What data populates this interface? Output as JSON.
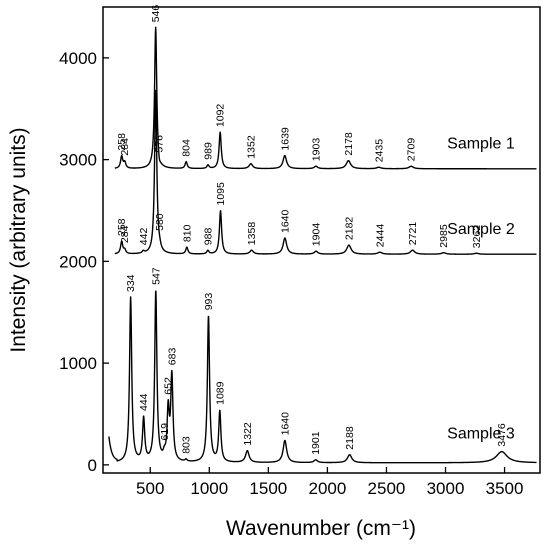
{
  "chart_data": {
    "type": "line",
    "xlabel": "Wavenumber (cm⁻¹)",
    "ylabel": "Intensity (arbitrary units)",
    "xlim": [
      100,
      3800
    ],
    "ylim": [
      -80,
      4500
    ],
    "xticks": [
      500,
      1000,
      1500,
      2000,
      2500,
      3000,
      3500
    ],
    "yticks": [
      0,
      1000,
      2000,
      3000,
      4000
    ],
    "grid": false,
    "series": [
      {
        "name": "Sample 1",
        "baseline": 2910,
        "peaks": [
          {
            "x": 258,
            "y": 3040,
            "label": "258"
          },
          {
            "x": 284,
            "y": 2990,
            "label": "284"
          },
          {
            "x": 546,
            "y": 4300,
            "label": "546"
          },
          {
            "x": 576,
            "y": 3020,
            "label": "576"
          },
          {
            "x": 804,
            "y": 2980,
            "label": "804"
          },
          {
            "x": 989,
            "y": 2950,
            "label": "989"
          },
          {
            "x": 1092,
            "y": 3270,
            "label": "1092"
          },
          {
            "x": 1352,
            "y": 2960,
            "label": "1352"
          },
          {
            "x": 1639,
            "y": 3040,
            "label": "1639"
          },
          {
            "x": 1903,
            "y": 2935,
            "label": "1903"
          },
          {
            "x": 2178,
            "y": 2990,
            "label": "2178"
          },
          {
            "x": 2435,
            "y": 2925,
            "label": "2435"
          },
          {
            "x": 2709,
            "y": 2935,
            "label": "2709"
          }
        ]
      },
      {
        "name": "Sample 2",
        "baseline": 2070,
        "peaks": [
          {
            "x": 258,
            "y": 2200,
            "label": "258"
          },
          {
            "x": 284,
            "y": 2130,
            "label": "284"
          },
          {
            "x": 442,
            "y": 2110,
            "label": "442"
          },
          {
            "x": 546,
            "y": 3680,
            "label": ""
          },
          {
            "x": 580,
            "y": 2250,
            "label": "580"
          },
          {
            "x": 810,
            "y": 2140,
            "label": "810"
          },
          {
            "x": 988,
            "y": 2110,
            "label": "988"
          },
          {
            "x": 1095,
            "y": 2500,
            "label": "1095"
          },
          {
            "x": 1358,
            "y": 2110,
            "label": "1358"
          },
          {
            "x": 1640,
            "y": 2230,
            "label": "1640"
          },
          {
            "x": 1904,
            "y": 2100,
            "label": "1904"
          },
          {
            "x": 2182,
            "y": 2160,
            "label": "2182"
          },
          {
            "x": 2444,
            "y": 2090,
            "label": "2444"
          },
          {
            "x": 2721,
            "y": 2110,
            "label": "2721"
          },
          {
            "x": 2985,
            "y": 2085,
            "label": "2985"
          },
          {
            "x": 3262,
            "y": 2080,
            "label": "3262"
          }
        ]
      },
      {
        "name": "Sample 3",
        "baseline": 20,
        "peaks": [
          {
            "x": 334,
            "y": 1650,
            "label": "334"
          },
          {
            "x": 444,
            "y": 480,
            "label": "444"
          },
          {
            "x": 547,
            "y": 1720,
            "label": "547"
          },
          {
            "x": 619,
            "y": 190,
            "label": "619"
          },
          {
            "x": 652,
            "y": 640,
            "label": "652"
          },
          {
            "x": 683,
            "y": 930,
            "label": "683"
          },
          {
            "x": 803,
            "y": 60,
            "label": "803"
          },
          {
            "x": 993,
            "y": 1470,
            "label": "993"
          },
          {
            "x": 1089,
            "y": 540,
            "label": "1089"
          },
          {
            "x": 1322,
            "y": 140,
            "label": "1322"
          },
          {
            "x": 1640,
            "y": 240,
            "label": "1640"
          },
          {
            "x": 1901,
            "y": 50,
            "label": "1901"
          },
          {
            "x": 2188,
            "y": 100,
            "label": "2188"
          },
          {
            "x": 3476,
            "y": 130,
            "label": "3476"
          }
        ]
      }
    ]
  }
}
